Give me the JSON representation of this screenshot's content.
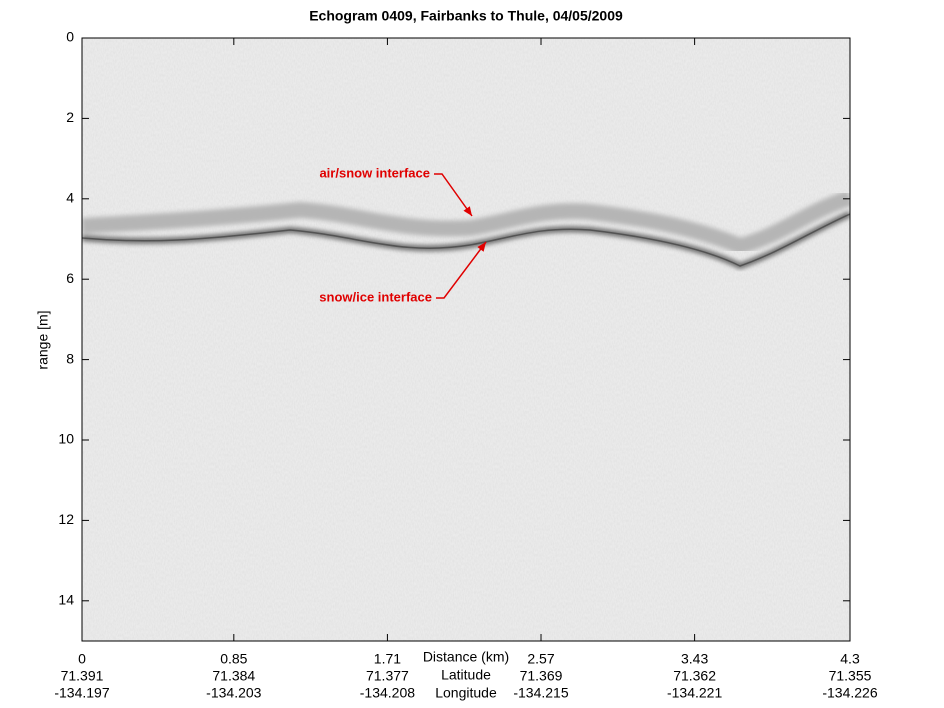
{
  "chart_data": {
    "type": "echogram",
    "title": "Echogram 0409, Fairbanks to Thule, 04/05/2009",
    "xlabel": "Distance (km)",
    "latitude_label": "Latitude",
    "longitude_label": "Longitude",
    "ylabel": "range [m]",
    "xlim": [
      0,
      4.3
    ],
    "xticks": [
      0,
      0.85,
      1.71,
      2.57,
      3.43,
      4.3
    ],
    "latitude_ticks": [
      71.391,
      71.384,
      71.377,
      71.369,
      71.362,
      71.355
    ],
    "longitude_ticks": [
      -134.197,
      -134.203,
      -134.208,
      -134.215,
      -134.221,
      -134.226
    ],
    "ylim": [
      0,
      15
    ],
    "yticks": [
      0,
      2,
      4,
      6,
      8,
      10,
      12,
      14
    ],
    "y_inverted": true,
    "annotations": [
      {
        "text": "air/snow interface"
      },
      {
        "text": "snow/ice interface"
      }
    ],
    "annotation_color": "#e00000"
  }
}
